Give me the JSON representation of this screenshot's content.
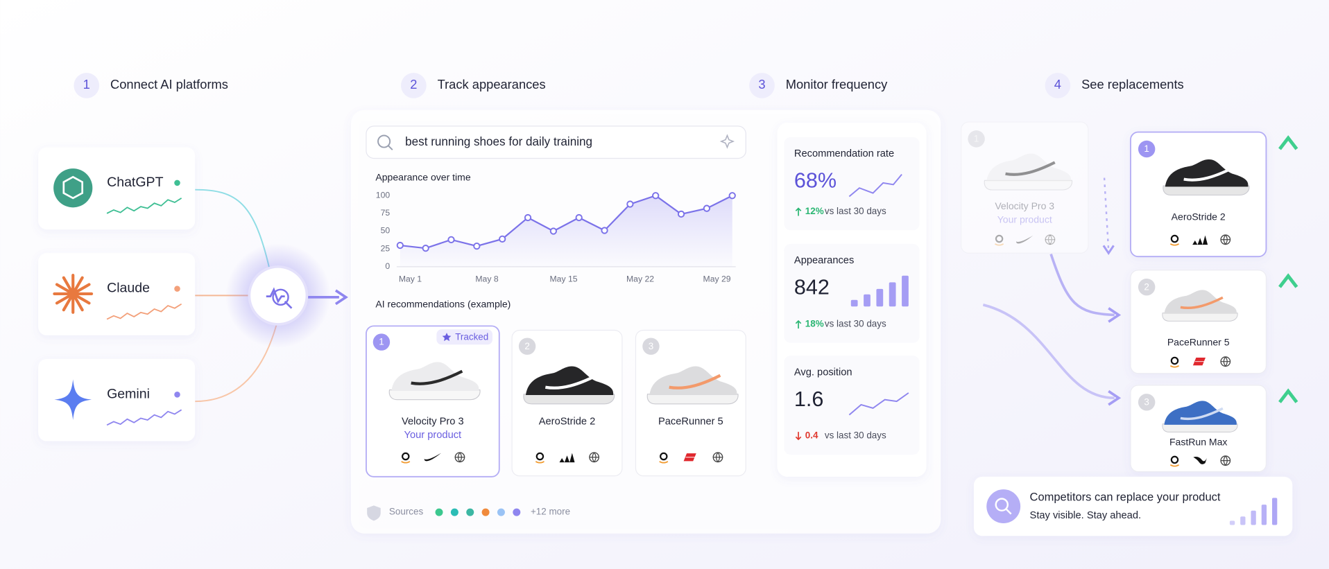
{
  "steps": [
    {
      "number": 1,
      "label": "Connect AI platforms"
    },
    {
      "number": 2,
      "label": "Track appearances"
    },
    {
      "number": 3,
      "label": "Monitor frequency"
    },
    {
      "number": 4,
      "label": "See replacements"
    }
  ],
  "platforms": [
    {
      "name": "ChatGPT"
    },
    {
      "name": "Claude"
    },
    {
      "name": "Gemini"
    }
  ],
  "search": {
    "query": "best running shoes for daily training"
  },
  "chart_data": {
    "type": "line",
    "title": "Appearance over time",
    "categories": [
      "May 1",
      null,
      null,
      "May 8",
      null,
      null,
      "May 15",
      null,
      null,
      "May 22",
      null,
      null,
      "May 29",
      null
    ],
    "values": [
      30,
      26,
      38,
      29,
      39,
      69,
      50,
      69,
      51,
      88,
      100,
      74,
      82,
      100
    ],
    "ylim": [
      0,
      100
    ],
    "yticks": [
      0,
      25,
      50,
      75,
      100
    ],
    "color": "#7b72e9",
    "grid": false
  },
  "recommendations": {
    "title": "AI recommendations (example)",
    "badge": "Tracked",
    "items": [
      {
        "rank": 1,
        "name": "Velocity Pro 3",
        "note": "Your product"
      },
      {
        "rank": 2,
        "name": "AeroStride 2"
      },
      {
        "rank": 3,
        "name": "PaceRunner 5"
      }
    ]
  },
  "metrics": [
    {
      "label": "Recommendation rate",
      "value": "68%",
      "change": "12%",
      "period": "vs last 30 days"
    },
    {
      "label": "Appearances",
      "value": "842",
      "change": "18%",
      "period": "vs last 30 days"
    },
    {
      "label": "Avg. position",
      "value": "1.6",
      "change": "0.4",
      "period": "vs last 30 days"
    }
  ],
  "sources": {
    "label": "Sources",
    "more": "+12 more"
  },
  "replacements": {
    "original": {
      "rank": 1,
      "name": "Velocity Pro 3",
      "note": "Your product"
    },
    "items": [
      {
        "rank": 1,
        "name": "AeroStride 2"
      },
      {
        "rank": 2,
        "name": "PaceRunner 5"
      },
      {
        "rank": 3,
        "name": "FastRun Max"
      }
    ]
  },
  "footer": {
    "title": "Competitors can replace your product",
    "subtitle": "Stay visible. Stay ahead."
  }
}
